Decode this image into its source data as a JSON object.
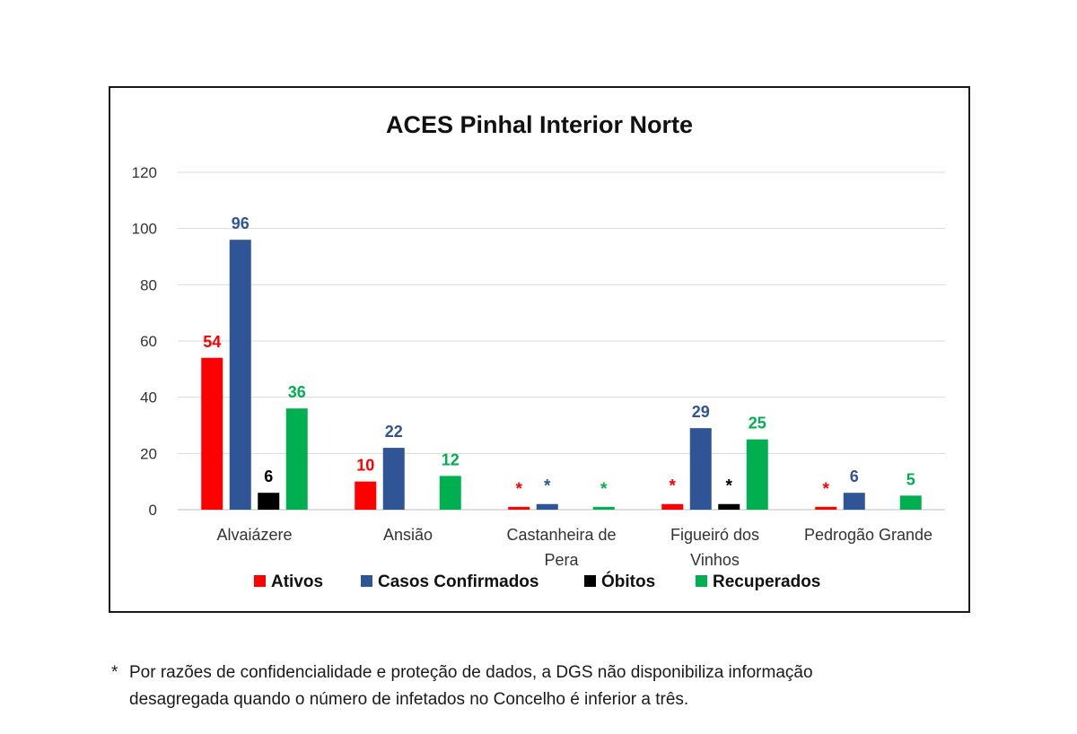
{
  "chart_data": {
    "type": "bar",
    "title": "ACES Pinhal Interior Norte",
    "xlabel": "",
    "ylabel": "",
    "ylim": [
      0,
      120
    ],
    "yticks": [
      0,
      20,
      40,
      60,
      80,
      100,
      120
    ],
    "grid": true,
    "legend_position": "bottom",
    "categories": [
      [
        "Alvaiázere"
      ],
      [
        "Ansião"
      ],
      [
        "Castanheira de",
        "Pera"
      ],
      [
        "Figueiró dos",
        "Vinhos"
      ],
      [
        "Pedrogão Grande"
      ]
    ],
    "series": [
      {
        "name": "Ativos",
        "color": "#ff0000",
        "values": [
          54,
          10,
          1,
          2,
          1
        ],
        "labels": [
          "54",
          "10",
          "*",
          "*",
          "*"
        ]
      },
      {
        "name": "Casos Confirmados",
        "color": "#2f5597",
        "values": [
          96,
          22,
          2,
          29,
          6
        ],
        "labels": [
          "96",
          "22",
          "*",
          "29",
          "6"
        ]
      },
      {
        "name": "Óbitos",
        "color": "#000000",
        "values": [
          6,
          0,
          0,
          2,
          0
        ],
        "labels": [
          "6",
          "",
          "",
          "*",
          ""
        ]
      },
      {
        "name": "Recuperados",
        "color": "#00b050",
        "values": [
          36,
          12,
          1,
          25,
          5
        ],
        "labels": [
          "36",
          "12",
          "*",
          "25",
          "5"
        ]
      }
    ]
  },
  "footnote": {
    "marker": "*",
    "line1": "Por razões de confidencialidade e proteção de dados, a DGS não disponibiliza informação",
    "line2": "desagregada quando o número de infetados no Concelho é inferior a três."
  }
}
